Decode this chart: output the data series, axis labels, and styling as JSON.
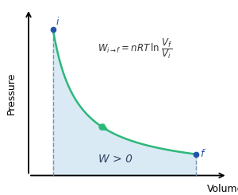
{
  "xlabel": "Volume",
  "ylabel": "Pressure",
  "curve_color": "#2db87a",
  "fill_color": "#c5dff0",
  "fill_alpha": 0.65,
  "dashed_color": "#6688aa",
  "point_color": "#2255aa",
  "mid_dot_color": "#2db87a",
  "x_start": 0.7,
  "x_end": 4.8,
  "x_mid": 2.1,
  "k": 3.5,
  "label_i": "i",
  "label_f": "f",
  "label_w": "W > 0",
  "formula_left": "$W_{i\\rightarrow f} = nRT\\, \\ln$",
  "figsize": [
    3.0,
    2.45
  ],
  "dpi": 100,
  "xlim": [
    0,
    5.8
  ],
  "ylim": [
    0,
    5.8
  ]
}
